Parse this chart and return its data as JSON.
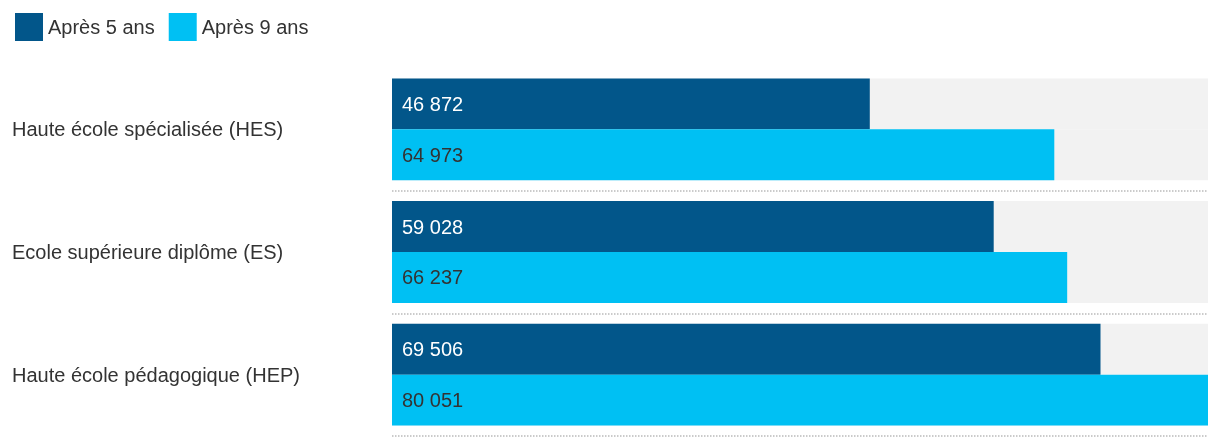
{
  "chart_data": {
    "type": "bar",
    "orientation": "horizontal",
    "categories": [
      "Haute école spécialisée (HES)",
      "Ecole supérieure diplôme (ES)",
      "Haute école pédagogique (HEP)"
    ],
    "series": [
      {
        "name": "Après 5 ans",
        "color": "#02568a",
        "values": [
          46872,
          59028,
          69506
        ],
        "value_labels": [
          "46 872",
          "59 028",
          "69 506"
        ]
      },
      {
        "name": "Après 9 ans",
        "color": "#00c0f3",
        "values": [
          64973,
          66237,
          80051
        ],
        "value_labels": [
          "64 973",
          "66 237",
          "80 051"
        ]
      }
    ],
    "legend": "top left",
    "grid": "y"
  }
}
